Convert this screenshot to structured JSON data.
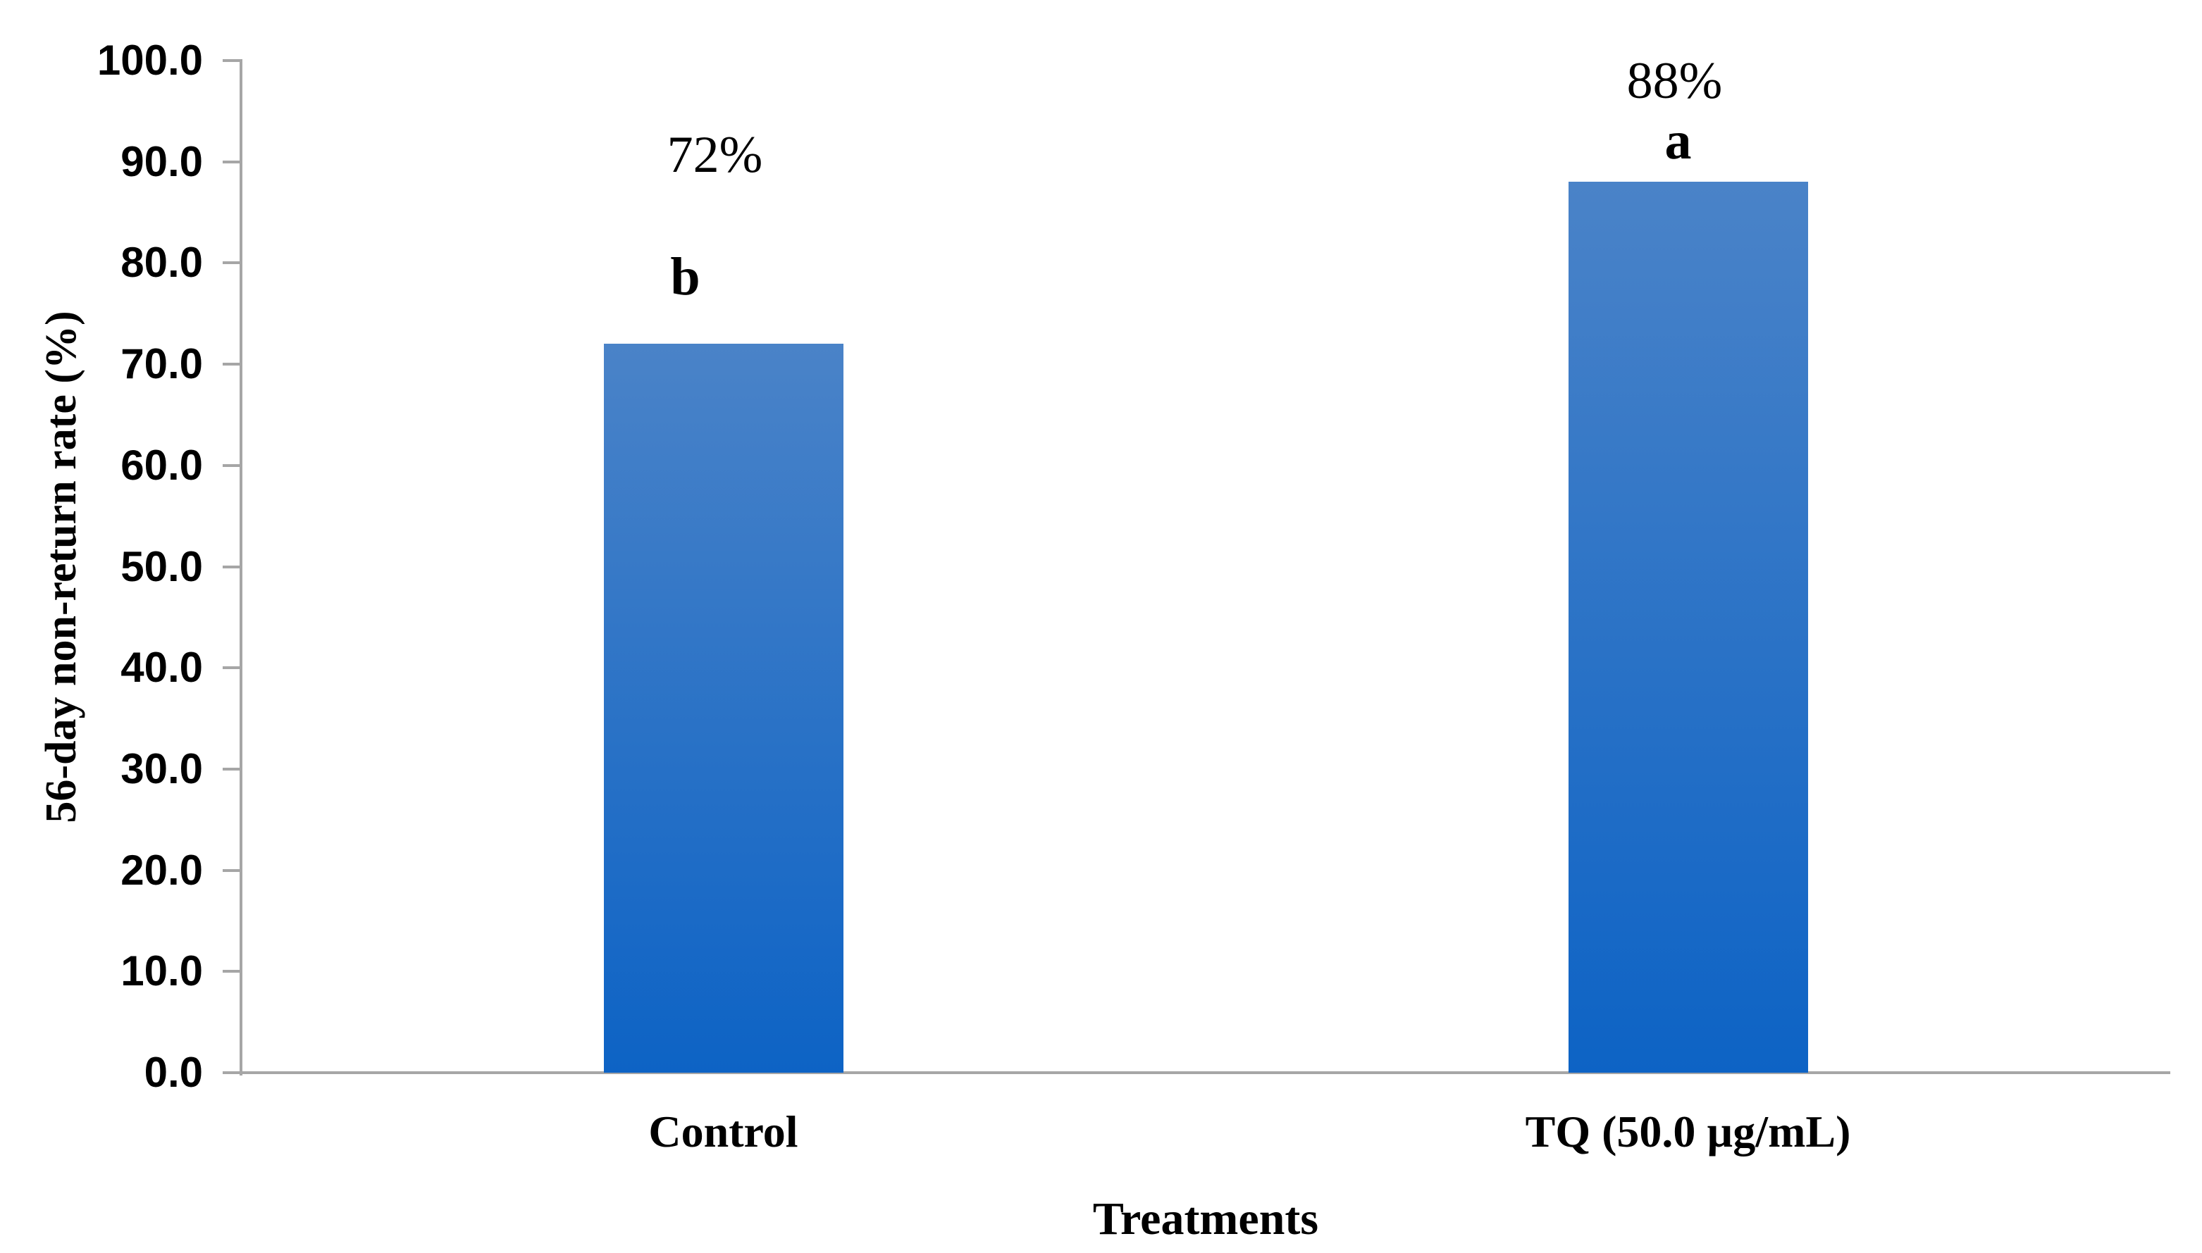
{
  "chart_data": {
    "type": "bar",
    "title": "",
    "xlabel": "Treatments",
    "ylabel": "56-day non-return rate (%)",
    "categories": [
      "Control",
      "TQ (50.0 µg/mL)"
    ],
    "values": [
      72,
      88
    ],
    "bar_value_labels": [
      "72%",
      "88%"
    ],
    "significance_letters": [
      "b",
      "a"
    ],
    "ylim": [
      0,
      100
    ],
    "ytick_interval": 10,
    "ytick_labels": [
      "0.0",
      "10.0",
      "20.0",
      "30.0",
      "40.0",
      "50.0",
      "60.0",
      "70.0",
      "80.0",
      "90.0",
      "100.0"
    ],
    "grid": false,
    "legend": false,
    "colors": {
      "bar_gradient_top": "#4A83C8",
      "bar_gradient_bottom": "#0D63C5",
      "axis_line": "#A6A6A6",
      "text": "#000000"
    }
  }
}
